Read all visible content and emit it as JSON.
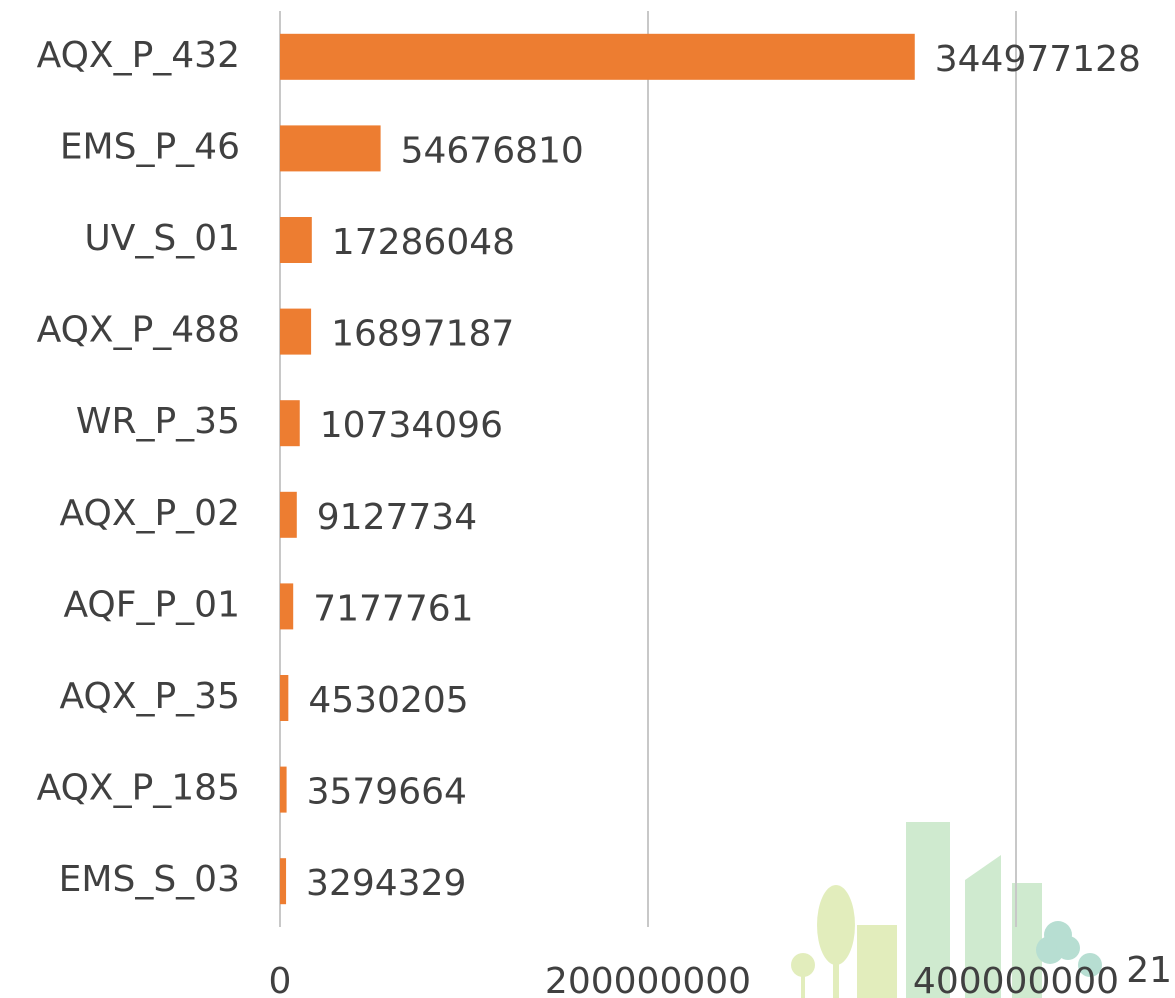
{
  "chart_data": {
    "type": "bar",
    "orientation": "horizontal",
    "categories": [
      "AQX_P_432",
      "EMS_P_46",
      "UV_S_01",
      "AQX_P_488",
      "WR_P_35",
      "AQX_P_02",
      "AQF_P_01",
      "AQX_P_35",
      "AQX_P_185",
      "EMS_S_03"
    ],
    "values": [
      344977128,
      54676810,
      17286048,
      16897187,
      10734096,
      9127734,
      7177761,
      4530205,
      3579664,
      3294329
    ],
    "color": "#ed7d31",
    "xlim": [
      0,
      400000000
    ],
    "xticks": [
      0,
      200000000,
      400000000
    ],
    "grid": true
  },
  "page_number": "21"
}
